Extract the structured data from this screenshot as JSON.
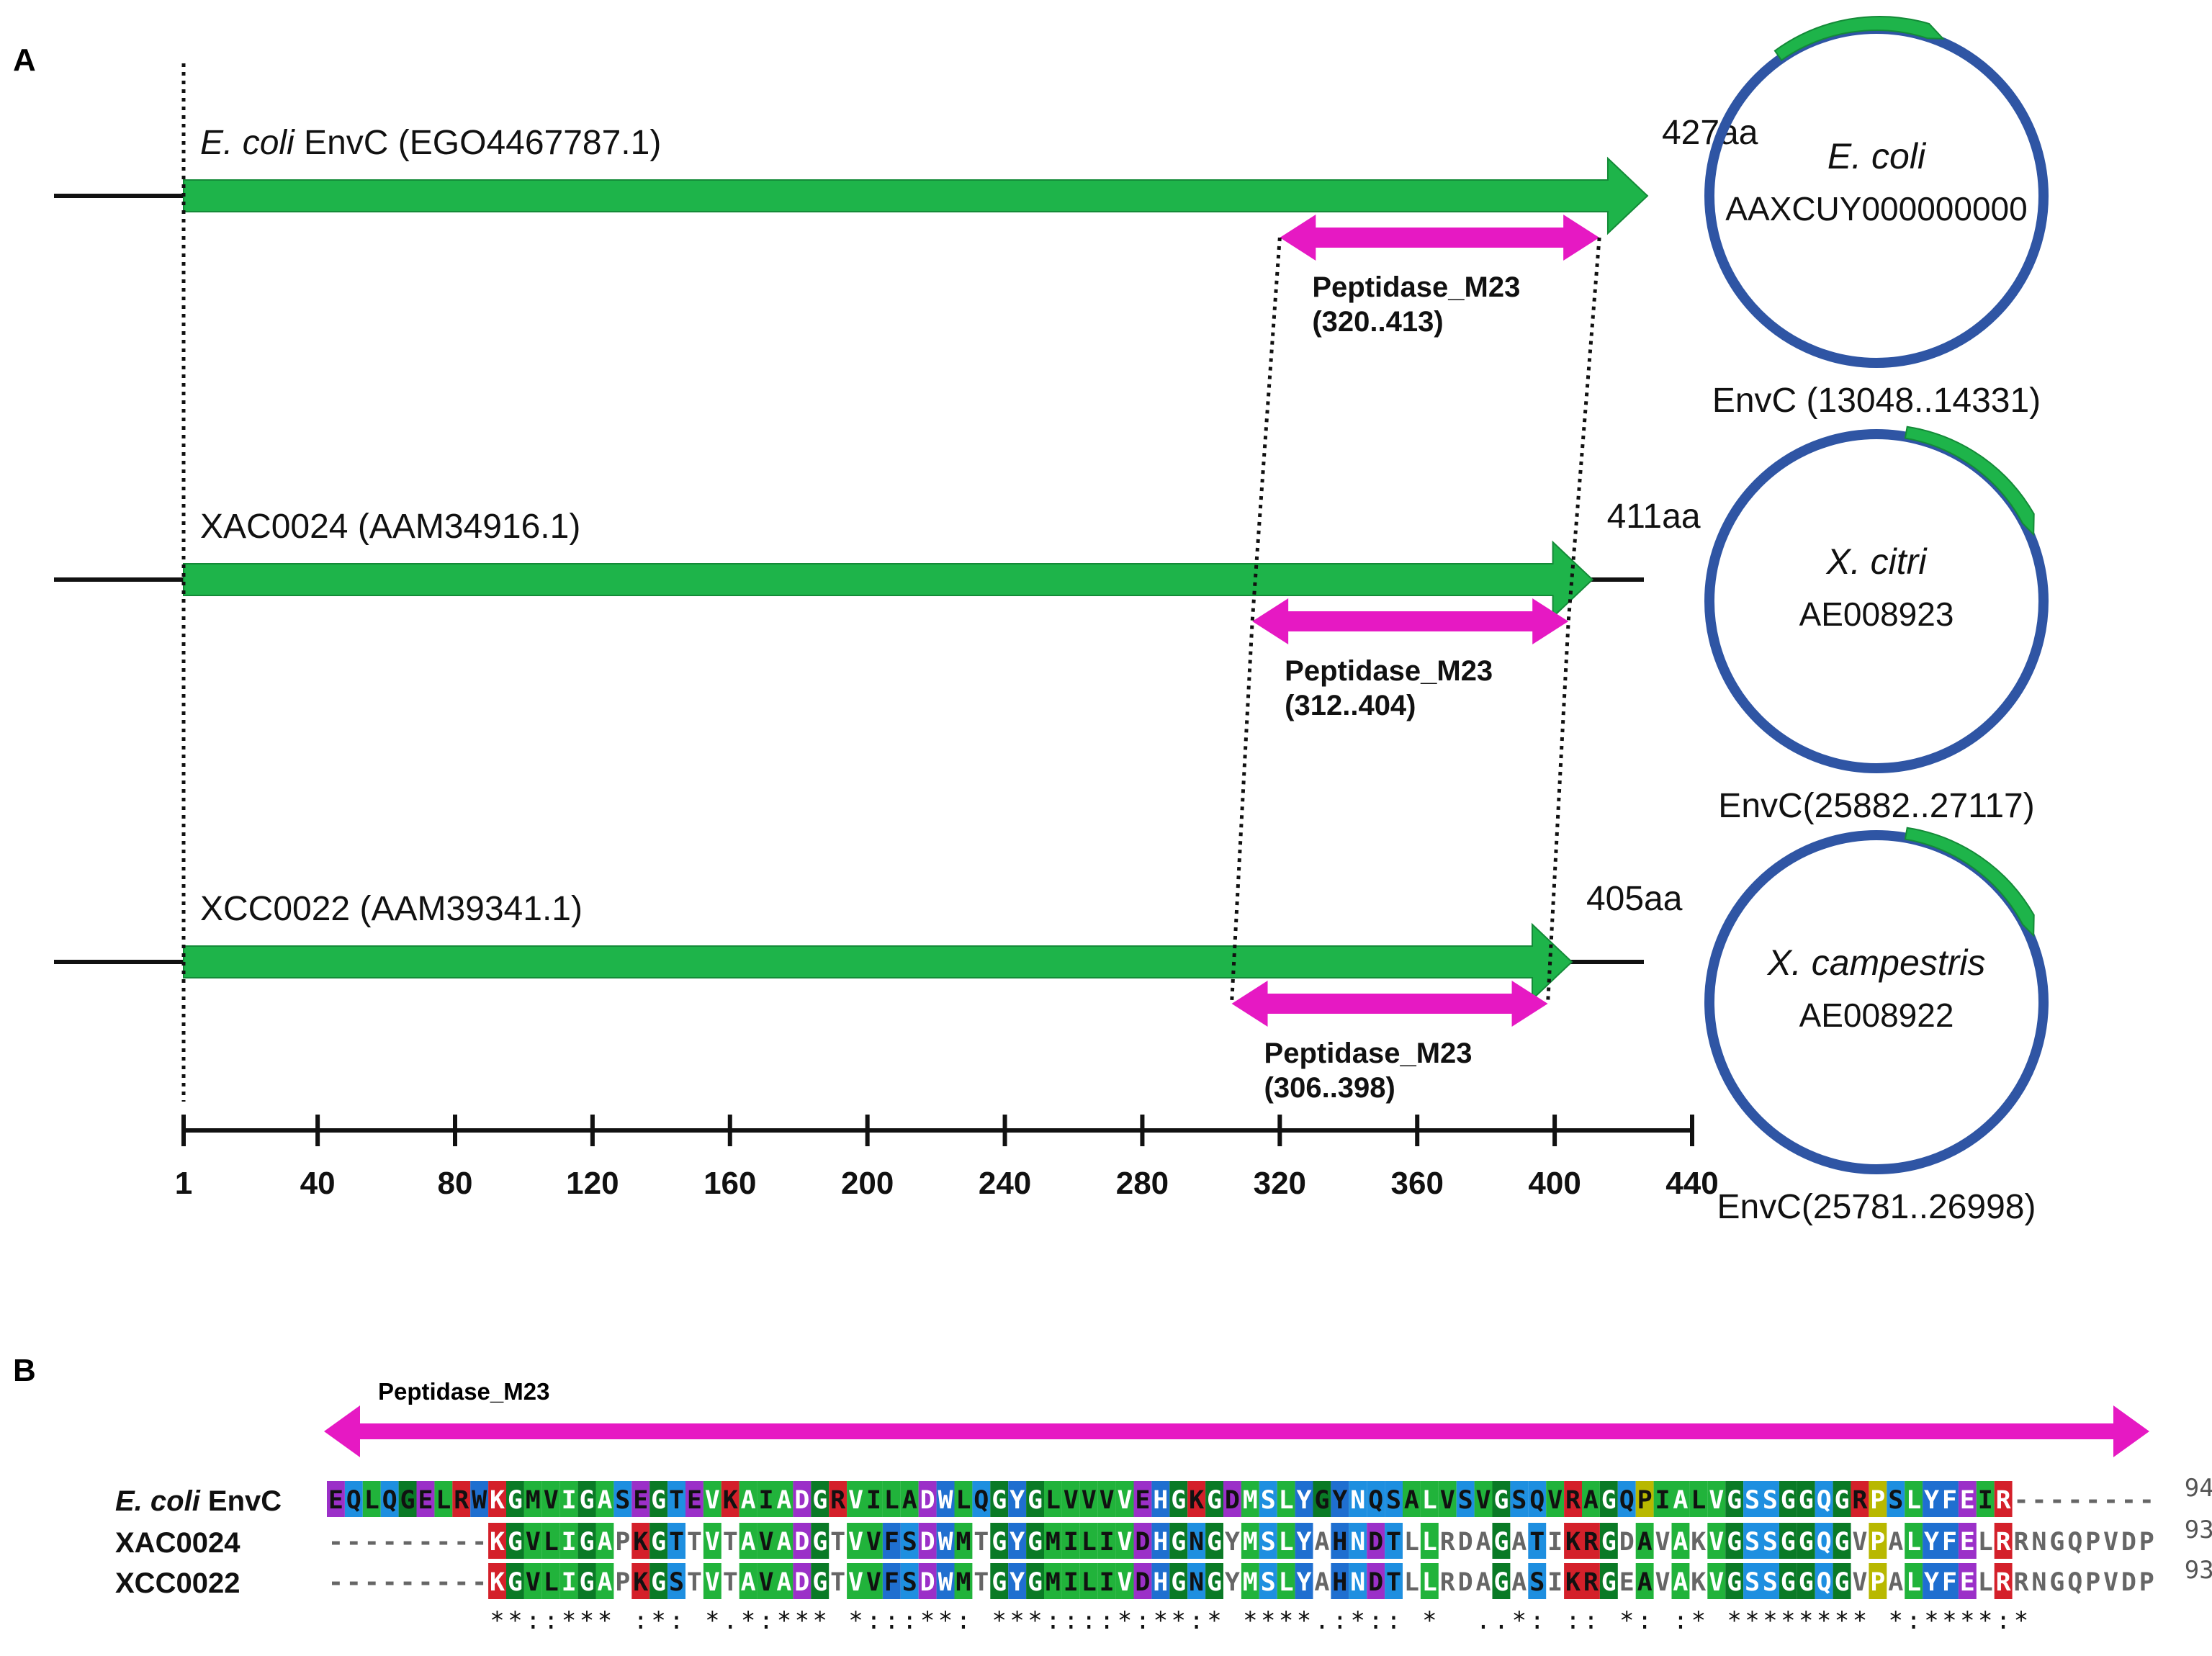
{
  "panel_a": {
    "label": "A",
    "proteins": [
      {
        "name_italic": "E. coli",
        "name_rest": " EnvC (EGO4467787.1)",
        "length_label": "427aa",
        "length": 427,
        "domain_name": "Peptidase_M23",
        "domain_range": "(320..413)",
        "domain_start": 320,
        "domain_end": 413
      },
      {
        "name_italic": "",
        "name_rest": "XAC0024 (AAM34916.1)",
        "length_label": "411aa",
        "length": 411,
        "domain_name": "Peptidase_M23",
        "domain_range": "(312..404)",
        "domain_start": 312,
        "domain_end": 404
      },
      {
        "name_italic": "",
        "name_rest": "XCC0022 (AAM39341.1)",
        "length_label": "405aa",
        "length": 405,
        "domain_name": "Peptidase_M23",
        "domain_range": "(306..398)",
        "domain_start": 306,
        "domain_end": 398
      }
    ],
    "axis": {
      "ticks": [
        1,
        40,
        80,
        120,
        160,
        200,
        240,
        280,
        320,
        360,
        400,
        440
      ]
    },
    "genomes": [
      {
        "species": "E. coli",
        "accession": "AAXCUY000000000",
        "gene_label": "EnvC (13048..14331)"
      },
      {
        "species": "X. citri",
        "accession": "AE008923",
        "gene_label": "EnvC(25882..27117)"
      },
      {
        "species": "X. campestris",
        "accession": "AE008922",
        "gene_label": "EnvC(25781..26998)"
      }
    ]
  },
  "panel_b": {
    "label": "B",
    "domain_label": "Peptidase_M23",
    "rows": [
      {
        "name_italic": "E. coli",
        "name_rest": " EnvC",
        "seq": "EQLQGELRWKGMVIGASEGTEVKAIADGRVILADWLQGYGLVVVVEHGKGDMSLYGYNQSALVSVGSQVRAGQPIALVGSSGGQGRPSLYFEIR--------",
        "num": "94"
      },
      {
        "name_italic": "",
        "name_rest": "XAC0024",
        "seq": "---------KGVLIGAPKGTTVTAVADGTVVFSDWMTGYGMILIVDHGNGYMSLYAHNDTLLRDAGATIKRGDAVAKVGSSGGQGVPALYFELRRNGQPVDP",
        "num": "93"
      },
      {
        "name_italic": "",
        "name_rest": "XCC0022",
        "seq": "---------KGVLIGAPKGSTVTAVADGTVVFSDWMTGYGMILIVDHGNGYMSLYAHNDTLLRDAGASIKRGEAVAKVGSSGGQGVPALYFELRRNGQPVDP",
        "num": "93"
      }
    ],
    "consensus": "         **::*** :*: *.*:*** *:::**: ***::::*:**:* ****.:*:: *  ..*: :: *: :* ******** *:****:*        ",
    "colors": {
      "hydrophobic": "#21b33b",
      "positive": "#d4202a",
      "negative": "#9b30c8",
      "polar": "#1e8fe0",
      "glycine": "#0a7a26",
      "aromatic": "#1f6fd0",
      "proline": "#b8b800"
    }
  },
  "colors": {
    "gene": "#1eb44a",
    "domain": "#e619c3",
    "genome": "#2f55a4",
    "line": "#111111"
  }
}
